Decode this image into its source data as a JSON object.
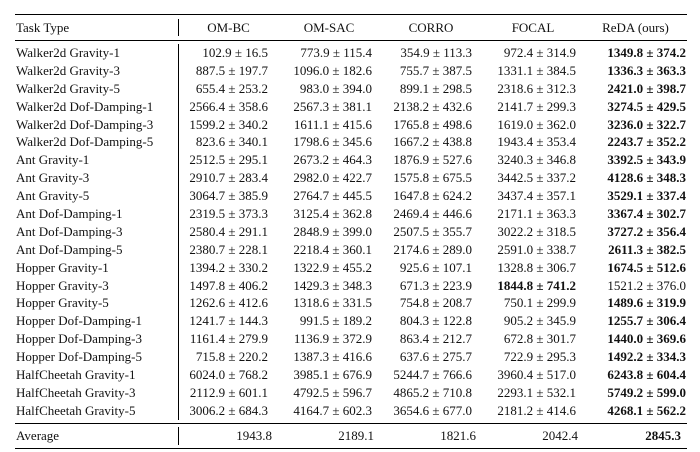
{
  "table": {
    "headers": [
      "Task Type",
      "OM-BC",
      "OM-SAC",
      "CORRO",
      "FOCAL",
      "ReDA (ours)"
    ],
    "rows": [
      {
        "task": "Walker2d Gravity-1",
        "values": [
          "102.9 ±   16.5",
          "773.9 ± 115.4",
          "354.9 ± 113.3",
          "972.4 ± 314.9",
          "1349.8 ± 374.2"
        ],
        "bold": [
          false,
          false,
          false,
          false,
          true
        ]
      },
      {
        "task": "Walker2d Gravity-3",
        "values": [
          "887.5 ± 197.7",
          "1096.0 ± 182.6",
          "755.7 ± 387.5",
          "1331.1 ± 384.5",
          "1336.3 ± 363.3"
        ],
        "bold": [
          false,
          false,
          false,
          false,
          true
        ]
      },
      {
        "task": "Walker2d Gravity-5",
        "values": [
          "655.4 ± 253.2",
          "983.0 ± 394.0",
          "899.1 ± 298.5",
          "2318.6 ± 312.3",
          "2421.0 ± 398.7"
        ],
        "bold": [
          false,
          false,
          false,
          false,
          true
        ]
      },
      {
        "task": "Walker2d Dof-Damping-1",
        "values": [
          "2566.4 ± 358.6",
          "2567.3 ± 381.1",
          "2138.2 ± 432.6",
          "2141.7 ± 299.3",
          "3274.5 ± 429.5"
        ],
        "bold": [
          false,
          false,
          false,
          false,
          true
        ]
      },
      {
        "task": "Walker2d Dof-Damping-3",
        "values": [
          "1599.2 ± 340.2",
          "1611.1 ± 415.6",
          "1765.8 ± 498.6",
          "1619.0 ± 362.0",
          "3236.0 ± 322.7"
        ],
        "bold": [
          false,
          false,
          false,
          false,
          true
        ]
      },
      {
        "task": "Walker2d Dof-Damping-5",
        "values": [
          "823.6 ± 340.1",
          "1798.6 ± 345.6",
          "1667.2 ± 438.8",
          "1943.4 ± 353.4",
          "2243.7 ± 352.2"
        ],
        "bold": [
          false,
          false,
          false,
          false,
          true
        ]
      },
      {
        "task": "Ant Gravity-1",
        "values": [
          "2512.5 ± 295.1",
          "2673.2 ± 464.3",
          "1876.9 ± 527.6",
          "3240.3 ± 346.8",
          "3392.5 ± 343.9"
        ],
        "bold": [
          false,
          false,
          false,
          false,
          true
        ]
      },
      {
        "task": "Ant Gravity-3",
        "values": [
          "2910.7 ± 283.4",
          "2982.0 ± 422.7",
          "1575.8 ± 675.5",
          "3442.5 ± 337.2",
          "4128.6 ± 348.3"
        ],
        "bold": [
          false,
          false,
          false,
          false,
          true
        ]
      },
      {
        "task": "Ant Gravity-5",
        "values": [
          "3064.7 ± 385.9",
          "2764.7 ± 445.5",
          "1647.8 ± 624.2",
          "3437.4 ± 357.1",
          "3529.1 ± 337.4"
        ],
        "bold": [
          false,
          false,
          false,
          false,
          true
        ]
      },
      {
        "task": "Ant Dof-Damping-1",
        "values": [
          "2319.5 ± 373.3",
          "3125.4 ± 362.8",
          "2469.4 ± 446.6",
          "2171.1 ± 363.3",
          "3367.4 ± 302.7"
        ],
        "bold": [
          false,
          false,
          false,
          false,
          true
        ]
      },
      {
        "task": "Ant Dof-Damping-3",
        "values": [
          "2580.4 ± 291.1",
          "2848.9 ± 399.0",
          "2507.5 ± 355.7",
          "3022.2 ± 318.5",
          "3727.2 ± 356.4"
        ],
        "bold": [
          false,
          false,
          false,
          false,
          true
        ]
      },
      {
        "task": "Ant Dof-Damping-5",
        "values": [
          "2380.7 ± 228.1",
          "2218.4 ± 360.1",
          "2174.6 ± 289.0",
          "2591.0 ± 338.7",
          "2611.3 ± 382.5"
        ],
        "bold": [
          false,
          false,
          false,
          false,
          true
        ]
      },
      {
        "task": "Hopper Gravity-1",
        "values": [
          "1394.2 ± 330.2",
          "1322.9 ± 455.2",
          "925.6 ± 107.1",
          "1328.8 ± 306.7",
          "1674.5 ± 512.6"
        ],
        "bold": [
          false,
          false,
          false,
          false,
          true
        ]
      },
      {
        "task": "Hopper Gravity-3",
        "values": [
          "1497.8 ± 406.2",
          "1429.3 ± 348.3",
          "671.3 ± 223.9",
          "1844.8 ± 741.2",
          "1521.2 ±   376.0"
        ],
        "bold": [
          false,
          false,
          false,
          true,
          false
        ]
      },
      {
        "task": "Hopper Gravity-5",
        "values": [
          "1262.6 ± 412.6",
          "1318.6 ± 331.5",
          "754.8 ± 208.7",
          "750.1 ± 299.9",
          "1489.6 ± 319.9"
        ],
        "bold": [
          false,
          false,
          false,
          false,
          true
        ]
      },
      {
        "task": "Hopper Dof-Damping-1",
        "values": [
          "1241.7 ± 144.3",
          "991.5 ± 189.2",
          "804.3 ± 122.8",
          "905.2 ± 345.9",
          "1255.7 ± 306.4"
        ],
        "bold": [
          false,
          false,
          false,
          false,
          true
        ]
      },
      {
        "task": "Hopper Dof-Damping-3",
        "values": [
          "1161.4 ± 279.9",
          "1136.9 ± 372.9",
          "863.4 ± 212.7",
          "672.8 ± 301.7",
          "1440.0 ± 369.6"
        ],
        "bold": [
          false,
          false,
          false,
          false,
          true
        ]
      },
      {
        "task": "Hopper Dof-Damping-5",
        "values": [
          "715.8 ± 220.2",
          "1387.3 ± 416.6",
          "637.6 ± 275.7",
          "722.9 ± 295.3",
          "1492.2 ± 334.3"
        ],
        "bold": [
          false,
          false,
          false,
          false,
          true
        ]
      },
      {
        "task": "HalfCheetah Gravity-1",
        "values": [
          "6024.0 ± 768.2",
          "3985.1 ± 676.9",
          "5244.7 ± 766.6",
          "3960.4 ± 517.0",
          "6243.8 ± 604.4"
        ],
        "bold": [
          false,
          false,
          false,
          false,
          true
        ]
      },
      {
        "task": "HalfCheetah Gravity-3",
        "values": [
          "2112.9 ± 601.1",
          "4792.5 ± 596.7",
          "4865.2 ± 710.8",
          "2293.1 ± 532.1",
          "5749.2 ± 599.0"
        ],
        "bold": [
          false,
          false,
          false,
          false,
          true
        ]
      },
      {
        "task": "HalfCheetah Gravity-5",
        "values": [
          "3006.2 ± 684.3",
          "4164.7 ± 602.3",
          "3654.6 ± 677.0",
          "2181.2 ± 414.6",
          "4268.1 ± 562.2"
        ],
        "bold": [
          false,
          false,
          false,
          false,
          true
        ]
      }
    ],
    "average": {
      "label": "Average",
      "values": [
        "1943.8",
        "2189.1",
        "1821.6",
        "2042.4",
        "2845.3"
      ],
      "bold": [
        false,
        false,
        false,
        false,
        true
      ]
    }
  }
}
